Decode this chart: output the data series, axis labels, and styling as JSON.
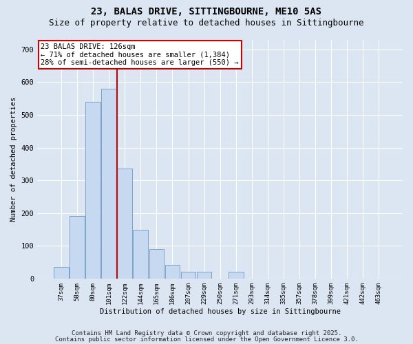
{
  "title1": "23, BALAS DRIVE, SITTINGBOURNE, ME10 5AS",
  "title2": "Size of property relative to detached houses in Sittingbourne",
  "xlabel": "Distribution of detached houses by size in Sittingbourne",
  "ylabel": "Number of detached properties",
  "categories": [
    "37sqm",
    "58sqm",
    "80sqm",
    "101sqm",
    "122sqm",
    "144sqm",
    "165sqm",
    "186sqm",
    "207sqm",
    "229sqm",
    "250sqm",
    "271sqm",
    "293sqm",
    "314sqm",
    "335sqm",
    "357sqm",
    "378sqm",
    "399sqm",
    "421sqm",
    "442sqm",
    "463sqm"
  ],
  "values": [
    35,
    190,
    540,
    580,
    335,
    148,
    90,
    42,
    20,
    20,
    0,
    20,
    0,
    0,
    0,
    0,
    0,
    0,
    0,
    0,
    0
  ],
  "bar_color": "#c6d9f1",
  "bar_edge_color": "#7099c2",
  "vline_x": 3.5,
  "vline_color": "#cc0000",
  "annotation_line1": "23 BALAS DRIVE: 126sqm",
  "annotation_line2": "← 71% of detached houses are smaller (1,384)",
  "annotation_line3": "28% of semi-detached houses are larger (550) →",
  "annotation_box_color": "#ffffff",
  "annotation_box_edge": "#cc0000",
  "ylim": [
    0,
    730
  ],
  "yticks": [
    0,
    100,
    200,
    300,
    400,
    500,
    600,
    700
  ],
  "background_color": "#dce6f2",
  "plot_bg_color": "#dce6f2",
  "footer1": "Contains HM Land Registry data © Crown copyright and database right 2025.",
  "footer2": "Contains public sector information licensed under the Open Government Licence 3.0.",
  "title1_fontsize": 10,
  "title2_fontsize": 9,
  "annot_fontsize": 7.5,
  "footer_fontsize": 6.5,
  "ylabel_fontsize": 7.5,
  "xlabel_fontsize": 7.5,
  "ytick_fontsize": 7.5,
  "xtick_fontsize": 6.5
}
